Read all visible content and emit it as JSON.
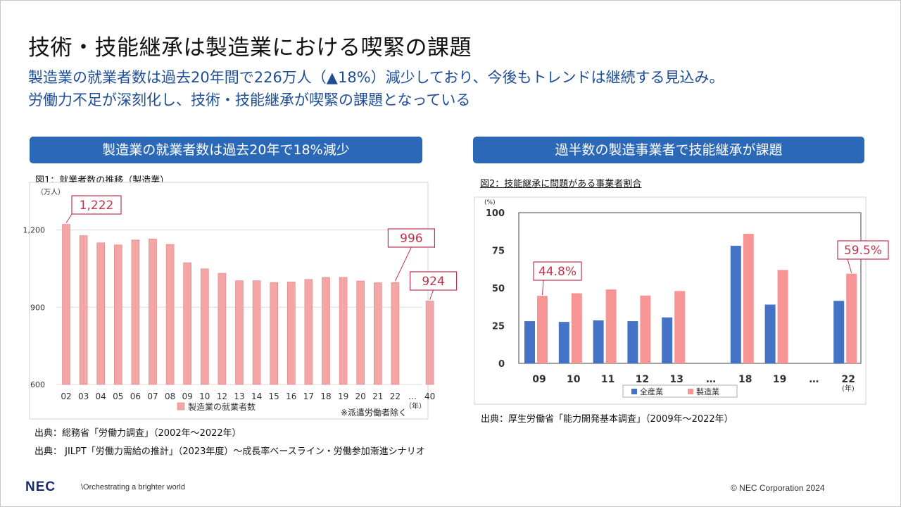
{
  "header": {
    "title": "技術・技能継承は製造業における喫緊の課題",
    "subtitle_line1": "製造業の就業者数は過去20年間で226万人（▲18%）減少しており、今後もトレンドは継続する見込み。",
    "subtitle_line2": "労働力不足が深刻化し、技術・技能継承が喫緊の課題となっている"
  },
  "left_panel": {
    "banner": "製造業の就業者数は過去20年で18%減少",
    "figure_caption": "図1：就業者数の推移（製造業）",
    "note": "※派遣労働者除く",
    "source1": "出典：総務省「労働力調査」（2002年～2022年）",
    "source2": "出典： JILPT「労働力需給の推計」（2023年度）～成長率ベースライン・労働参加漸進シナリオ"
  },
  "right_panel": {
    "banner": "過半数の製造事業者で技能継承が課題",
    "figure_caption": "図2：技能継承に問題がある事業者割合",
    "source": "出典：厚生労働省「能力開発基本調査」（2009年～2022年）"
  },
  "footer": {
    "logo": "NEC",
    "tagline": "\\Orchestrating a brighter world",
    "copyright": "© NEC Corporation 2024"
  },
  "chart_data": [
    {
      "type": "bar",
      "unit_label": "（万人）",
      "x_unit_label": "（年）",
      "categories": [
        "02",
        "03",
        "04",
        "05",
        "06",
        "07",
        "08",
        "09",
        "10",
        "12",
        "13",
        "14",
        "15",
        "16",
        "17",
        "18",
        "19",
        "20",
        "21",
        "22",
        "…",
        "40"
      ],
      "series": [
        {
          "name": "製造業の就業者数",
          "color": "#f4a6a6",
          "values": [
            1222,
            1178,
            1150,
            1142,
            1161,
            1165,
            1144,
            1073,
            1049,
            1032,
            1003,
            1003,
            996,
            998,
            1008,
            1016,
            1016,
            1002,
            995,
            996,
            null,
            924
          ]
        }
      ],
      "ylim": [
        600,
        1300
      ],
      "yticks": [
        600,
        900,
        1200
      ],
      "ytick_labels": [
        "600",
        "900",
        "1,200"
      ],
      "grid": true,
      "legend": "bottom",
      "callouts": [
        {
          "category": "02",
          "label": "1,222"
        },
        {
          "category": "22",
          "label": "996"
        },
        {
          "category": "40",
          "label": "924"
        }
      ]
    },
    {
      "type": "bar",
      "unit_label": "(%)",
      "x_unit_label": "(年)",
      "categories": [
        "09",
        "10",
        "11",
        "12",
        "13",
        "…",
        "18",
        "19",
        "…",
        "22"
      ],
      "series": [
        {
          "name": "全産業",
          "color": "#4472c4",
          "values": [
            28,
            27.5,
            28.5,
            28,
            30.5,
            null,
            78,
            39,
            null,
            41.5
          ]
        },
        {
          "name": "製造業",
          "color": "#f79494",
          "values": [
            44.8,
            46.5,
            49,
            45,
            48,
            null,
            86,
            62,
            null,
            59.5
          ]
        }
      ],
      "ylim": [
        0,
        100
      ],
      "yticks": [
        0,
        25,
        50,
        75,
        100
      ],
      "ytick_labels": [
        "0",
        "25",
        "50",
        "75",
        "100"
      ],
      "grid": false,
      "legend": "bottom",
      "callouts": [
        {
          "category": "09",
          "label": "44.8%"
        },
        {
          "category": "22",
          "label": "59.5%"
        }
      ]
    }
  ]
}
